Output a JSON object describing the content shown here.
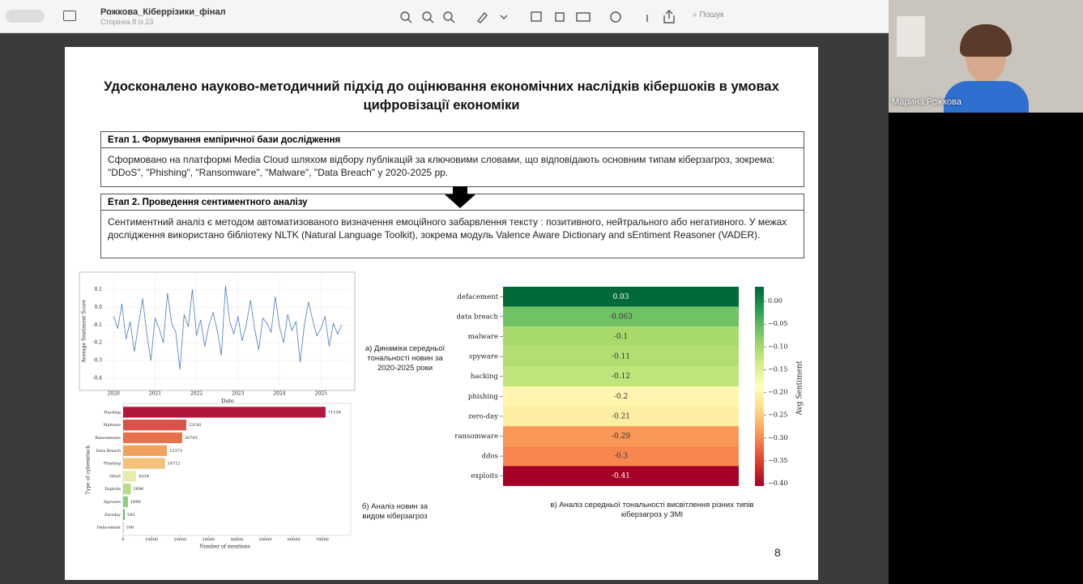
{
  "toolbar": {
    "title": "Рожкова_Кіберрізики_фінал",
    "subtitle": "Сторінка 8 із 23",
    "search": "Пошук"
  },
  "video": {
    "name": "Марина Рожкова"
  },
  "slide": {
    "title": "Удосконалено науково-методичний підхід до оцінювання економічних наслідків кібершоків в умовах цифровізації економіки",
    "stages": [
      {
        "heading": "Етап 1. Формування емпіричної бази дослідження",
        "text": "Сформовано на платформі Media Cloud шляхом відбору публікацій за ключовими словами, що відповідають основним типам кіберзагроз, зокрема: \"DDoS\", \"Phishing\", \"Ransomware\", \"Malware\", \"Data Breach\" у 2020-2025 рр."
      },
      {
        "heading": "Етап 2. Проведення сентиментного аналізу",
        "text": "Сентиментний аналіз є методом автоматизованого визначення емоційного забарвлення тексту : позитивного, нейтрального або негативного. У межах дослідження використано бібліотеку NLTK (Natural Language Toolkit), зокрема модуль Valence Aware Dictionary and sEntiment Reasoner (VADER)."
      }
    ],
    "captions": [
      "а) Динаміка середньої тональності новин за 2020-2025 роки",
      "б) Аналіз новин за видом кіберзагроз",
      "в) Аналіз середньої тональності висвітлення різних типів кіберзагроз у ЗМІ"
    ],
    "page_number": 8
  },
  "chart_data": [
    {
      "type": "line",
      "x_label": "Date",
      "y_label": "Average Sentiment Score",
      "x": [
        2020,
        2020.1,
        2020.2,
        2020.3,
        2020.4,
        2020.5,
        2020.6,
        2020.7,
        2020.8,
        2020.9,
        2021,
        2021.1,
        2021.2,
        2021.3,
        2021.4,
        2021.5,
        2021.6,
        2021.7,
        2021.8,
        2021.9,
        2022,
        2022.1,
        2022.2,
        2022.3,
        2022.4,
        2022.5,
        2022.6,
        2022.7,
        2022.8,
        2022.9,
        2023,
        2023.1,
        2023.2,
        2023.3,
        2023.4,
        2023.5,
        2023.6,
        2023.7,
        2023.8,
        2023.9,
        2024,
        2024.1,
        2024.2,
        2024.3,
        2024.4,
        2024.5,
        2024.6,
        2024.7,
        2024.8,
        2024.9,
        2025,
        2025.1,
        2025.2,
        2025.3,
        2025.4,
        2025.5
      ],
      "series": [
        {
          "color": "#4a78c0",
          "values": [
            -0.05,
            -0.12,
            0.02,
            -0.18,
            -0.08,
            -0.25,
            -0.1,
            0.05,
            -0.15,
            -0.3,
            -0.06,
            -0.12,
            -0.2,
            0.08,
            -0.09,
            -0.14,
            -0.35,
            -0.04,
            -0.11,
            0.1,
            -0.16,
            -0.07,
            -0.22,
            -0.1,
            -0.03,
            -0.13,
            -0.27,
            0.12,
            -0.08,
            -0.15,
            -0.05,
            -0.19,
            -0.1,
            0.04,
            -0.12,
            -0.24,
            -0.06,
            -0.09,
            -0.14,
            0.06,
            -0.11,
            -0.2,
            -0.04,
            -0.13,
            -0.08,
            -0.31,
            -0.1,
            0.03,
            -0.07,
            -0.16,
            -0.12,
            -0.05,
            -0.22,
            -0.09,
            -0.15,
            -0.1
          ]
        }
      ],
      "xlim": [
        2019.8,
        2025.7
      ],
      "xticks": [
        2020,
        2021,
        2022,
        2023,
        2024,
        2025
      ],
      "ylim": [
        -0.45,
        0.18
      ],
      "yticks": [
        0.1,
        {
          "value": 0,
          "label": "0.0"
        },
        -0.1,
        -0.2,
        -0.3,
        -0.4
      ],
      "grid": true
    },
    {
      "type": "barh",
      "x_label": "Number of mentions",
      "y_label": "Type of cyberattack",
      "categories": [
        "Hacking",
        "Malware",
        "Ransomware",
        "Data Breach",
        "Phishing",
        "DDoS",
        "Exploits",
        "Spyware",
        "Zeroday",
        "Defacement"
      ],
      "values": [
        71138,
        22192,
        20743,
        15373,
        14712,
        4539,
        2696,
        1688,
        583,
        106
      ],
      "colors": [
        "#b0173a",
        "#d9534a",
        "#e8704d",
        "#f0a25c",
        "#f4c27a",
        "#e8ecab",
        "#b6dc88",
        "#8ccf7b",
        "#61b96a",
        "#2f9a54"
      ],
      "xlim": [
        0,
        80000
      ],
      "xticks": [
        0,
        10000,
        20000,
        30000,
        40000,
        50000,
        60000,
        70000
      ]
    },
    {
      "type": "heatmap",
      "colorbar_label": "Avg Sentiment",
      "categories": [
        "defacement",
        "data breach",
        "malware",
        "spyware",
        "hacking",
        "phishing",
        "zero-day",
        "ransomware",
        "ddos",
        "exploits"
      ],
      "values": [
        0.03,
        -0.063,
        -0.1,
        -0.11,
        -0.12,
        -0.2,
        -0.21,
        -0.29,
        -0.3,
        -0.41
      ],
      "zlim": [
        -0.405,
        0.032
      ],
      "zticks": [
        {
          "value": 0,
          "label": "0.00"
        },
        {
          "value": -0.05,
          "label": "−0.05"
        },
        {
          "value": -0.1,
          "label": "−0.10"
        },
        {
          "value": -0.15,
          "label": "−0.15"
        },
        {
          "value": -0.2,
          "label": "−0.20"
        },
        {
          "value": -0.25,
          "label": "−0.25"
        },
        {
          "value": -0.3,
          "label": "−0.30"
        },
        {
          "value": -0.35,
          "label": "−0.35"
        },
        {
          "value": -0.4,
          "label": "−0.40"
        }
      ],
      "colormap": [
        "#a50026",
        "#d73027",
        "#f46d43",
        "#fdae61",
        "#fee08b",
        "#ffffbf",
        "#d9ef8b",
        "#a6d96a",
        "#66bd63",
        "#1a9850",
        "#006837"
      ]
    }
  ]
}
